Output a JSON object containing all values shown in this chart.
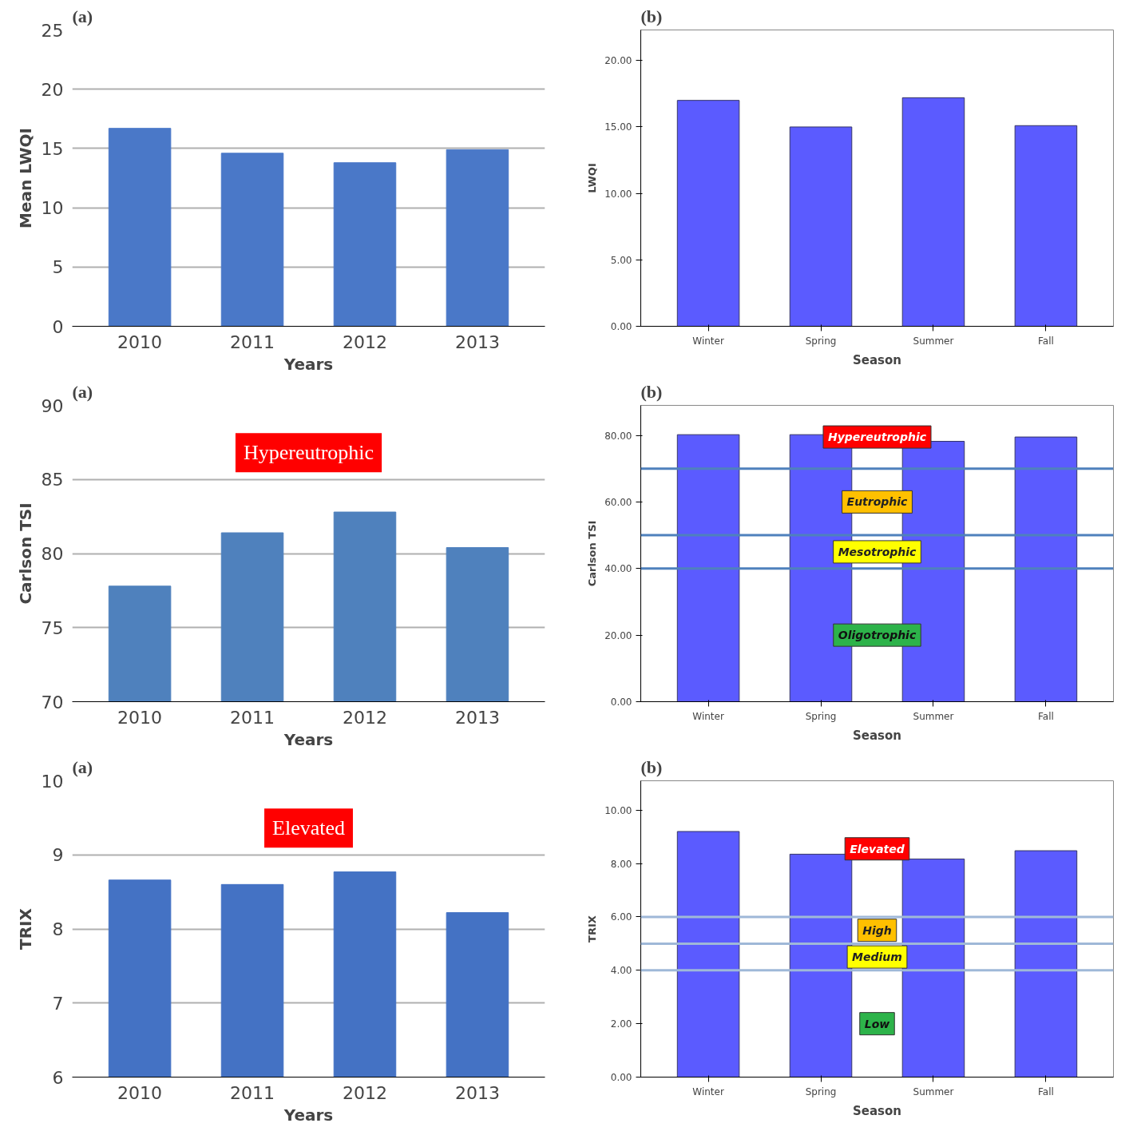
{
  "chart_data": [
    {
      "type": "bar",
      "title": "(a)",
      "xlabel": "Years",
      "ylabel": "Mean LWQI",
      "categories": [
        "2010",
        "2011",
        "2012",
        "2013"
      ],
      "values": [
        16.7,
        14.6,
        13.8,
        14.9
      ],
      "color": "#4a78c8",
      "ylim": [
        0,
        25
      ],
      "yticks": [
        0,
        5,
        10,
        15,
        20,
        25
      ],
      "grid": "y"
    },
    {
      "type": "bar",
      "title": "(b)",
      "xlabel": "Season",
      "ylabel": "LWQI",
      "categories": [
        "Winter",
        "Spring",
        "Summer",
        "Fall"
      ],
      "values": [
        17.0,
        15.0,
        17.2,
        15.1
      ],
      "color": "#5b5bff",
      "ylim": [
        0,
        22.3
      ],
      "yticks": [
        {
          "value": 0,
          "label": "0.00"
        },
        {
          "value": 5,
          "label": "5.00"
        },
        {
          "value": 10,
          "label": "10.00"
        },
        {
          "value": 15,
          "label": "15.00"
        },
        {
          "value": 20,
          "label": "20.00"
        }
      ]
    },
    {
      "type": "bar",
      "title": "(a)",
      "xlabel": "Years",
      "ylabel": "Carlson TSI",
      "categories": [
        "2010",
        "2011",
        "2012",
        "2013"
      ],
      "values": [
        77.8,
        81.4,
        82.8,
        80.4
      ],
      "color": "#4f81bd",
      "ylim": [
        70,
        90
      ],
      "yticks": [
        70,
        75,
        80,
        85,
        90
      ],
      "grid": "y",
      "annotations": [
        "Hypereutrophic"
      ]
    },
    {
      "type": "bar",
      "title": "(b)",
      "xlabel": "Season",
      "ylabel": "Carlson TSI",
      "categories": [
        "Winter",
        "Spring",
        "Summer",
        "Fall"
      ],
      "values": [
        80.2,
        80.2,
        78.2,
        79.5
      ],
      "color": "#5b5bff",
      "ylim": [
        0,
        89
      ],
      "yticks": [
        {
          "value": 0,
          "label": "0.00"
        },
        {
          "value": 20,
          "label": "20.00"
        },
        {
          "value": 40,
          "label": "40.00"
        },
        {
          "value": 60,
          "label": "60.00"
        },
        {
          "value": 80,
          "label": "80.00"
        }
      ],
      "ref_lines": [
        {
          "axis": "y",
          "value": 70,
          "color": "#4f81bd"
        },
        {
          "axis": "y",
          "value": 50,
          "color": "#4f81bd"
        },
        {
          "axis": "y",
          "value": 40,
          "color": "#4f81bd"
        }
      ],
      "annotations": [
        "Hypereutrophic",
        "Eutrophic",
        "Mesotrophic",
        "Oligotrophic"
      ]
    },
    {
      "type": "bar",
      "title": "(a)",
      "xlabel": "Years",
      "ylabel": "TRIX",
      "categories": [
        "2010",
        "2011",
        "2012",
        "2013"
      ],
      "values": [
        8.66,
        8.6,
        8.77,
        8.22
      ],
      "color": "#4472c4",
      "ylim": [
        6,
        10
      ],
      "yticks": [
        6,
        7,
        8,
        9,
        10
      ],
      "grid": "y",
      "annotations": [
        "Elevated"
      ]
    },
    {
      "type": "bar",
      "title": "(b)",
      "xlabel": "Season",
      "ylabel": "TRIX",
      "categories": [
        "Winter",
        "Spring",
        "Summer",
        "Fall"
      ],
      "values": [
        9.2,
        8.35,
        8.17,
        8.48
      ],
      "color": "#5b5bff",
      "ylim": [
        0,
        11.1
      ],
      "yticks": [
        {
          "value": 0,
          "label": "0.00"
        },
        {
          "value": 2,
          "label": "2.00"
        },
        {
          "value": 4,
          "label": "4.00"
        },
        {
          "value": 6,
          "label": "6.00"
        },
        {
          "value": 8,
          "label": "8.00"
        },
        {
          "value": 10,
          "label": "10.00"
        }
      ],
      "ref_lines": [
        {
          "axis": "y",
          "value": 6,
          "color": "#9fb8d8"
        },
        {
          "axis": "y",
          "value": 5,
          "color": "#9fb8d8"
        },
        {
          "axis": "y",
          "value": 4,
          "color": "#9fb8d8"
        }
      ],
      "annotations": [
        "Elevated",
        "High",
        "Medium",
        "Low"
      ]
    }
  ]
}
